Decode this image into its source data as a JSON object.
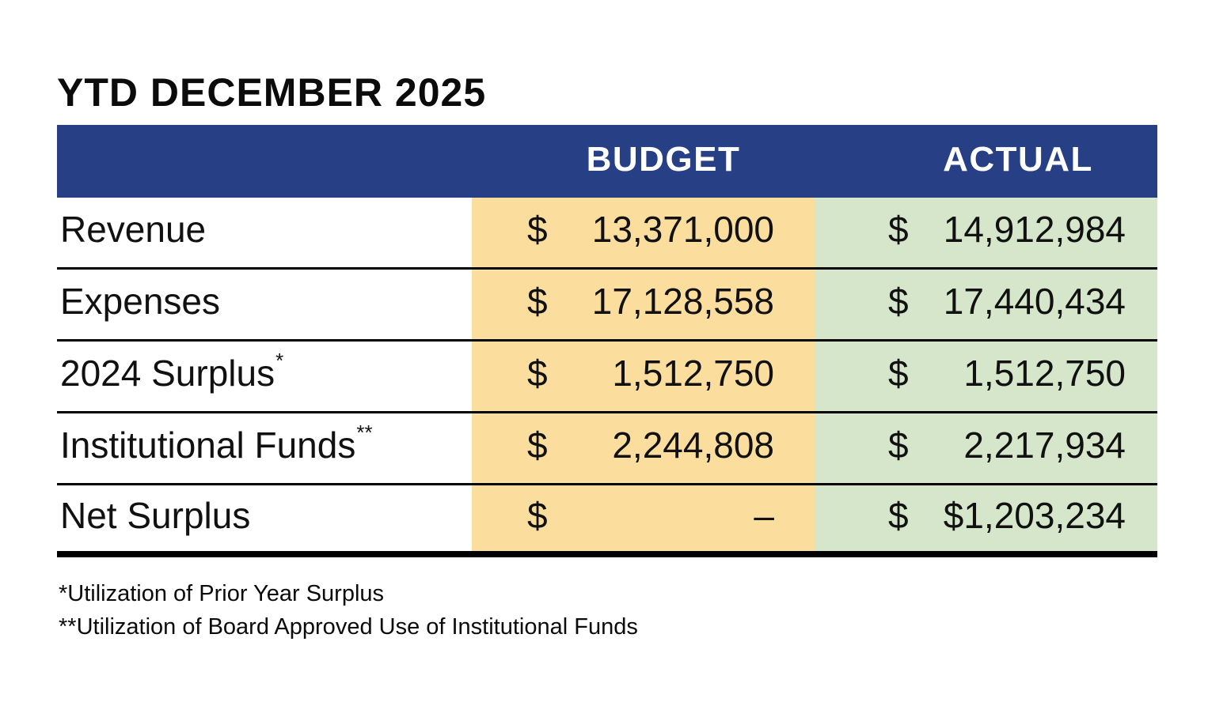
{
  "title": "YTD DECEMBER 2025",
  "table": {
    "currency_symbol": "$",
    "columns": [
      "BUDGET",
      "ACTUAL"
    ],
    "rows": [
      {
        "label": "Revenue",
        "footnote_marker": "",
        "budget": "13,371,000",
        "actual": "14,912,984"
      },
      {
        "label": "Expenses",
        "footnote_marker": "",
        "budget": "17,128,558",
        "actual": "17,440,434"
      },
      {
        "label": "2024 Surplus",
        "footnote_marker": "*",
        "budget": "1,512,750",
        "actual": "1,512,750"
      },
      {
        "label": "Institutional Funds",
        "footnote_marker": "**",
        "budget": "2,244,808",
        "actual": "2,217,934"
      },
      {
        "label": "Net Surplus",
        "footnote_marker": "",
        "budget": "–",
        "actual": "$1,203,234"
      }
    ]
  },
  "footnotes": [
    "*Utilization of Prior Year Surplus",
    "**Utilization of Board Approved Use of Institutional Funds"
  ],
  "colors": {
    "header_bg": "#263F85",
    "header_text": "#FFFFFF",
    "budget_col_bg": "#FBDE9E",
    "actual_col_bg": "#D5E6CA",
    "row_line": "#000000",
    "text": "#111111"
  },
  "chart_data": {
    "type": "table",
    "title": "YTD DECEMBER 2025",
    "columns": [
      "",
      "BUDGET",
      "ACTUAL"
    ],
    "rows": [
      [
        "Revenue",
        13371000,
        14912984
      ],
      [
        "Expenses",
        17128558,
        17440434
      ],
      [
        "2024 Surplus*",
        1512750,
        1512750
      ],
      [
        "Institutional Funds**",
        2244808,
        2217934
      ],
      [
        "Net Surplus",
        null,
        1203234
      ]
    ],
    "notes": [
      "*Utilization of Prior Year Surplus",
      "**Utilization of Board Approved Use of Institutional Funds"
    ]
  }
}
